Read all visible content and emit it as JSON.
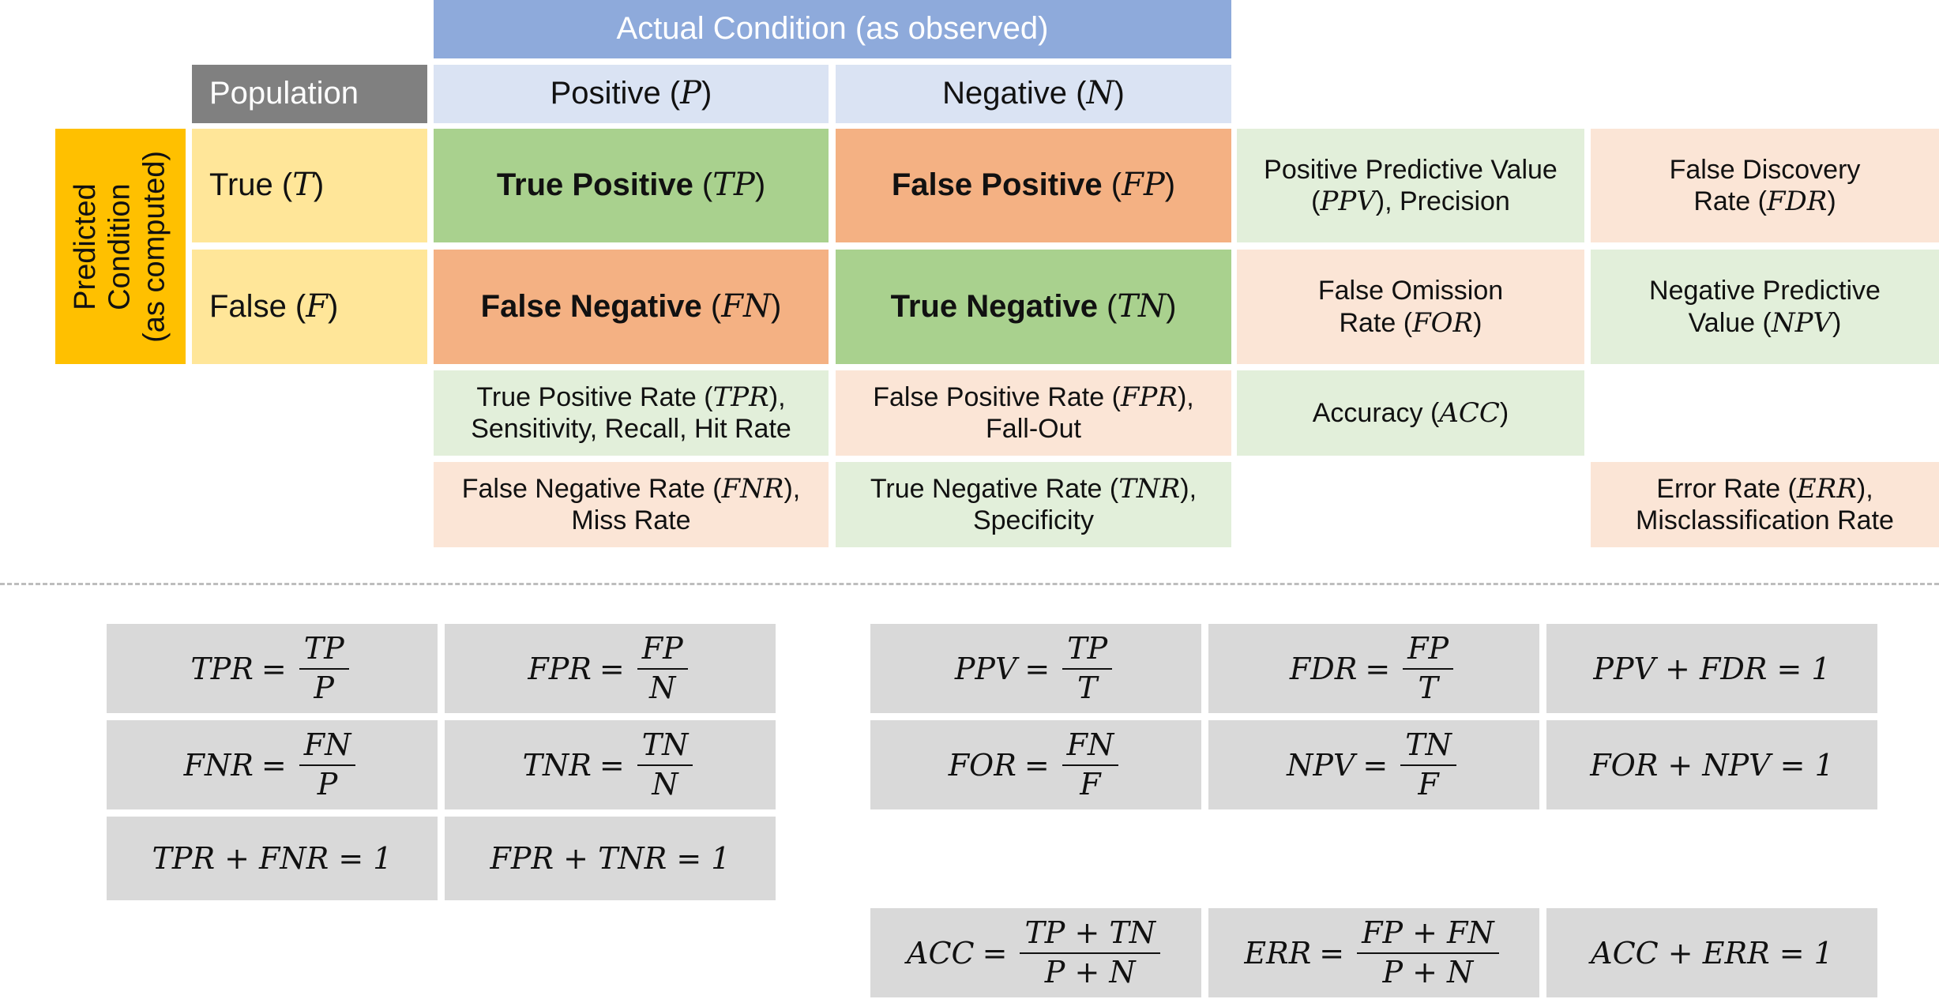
{
  "colors": {
    "header_blue": "#8eaadb",
    "header_lightblue": "#dae3f3",
    "population_gray": "#808080",
    "predicted_orange": "#ffc000",
    "predicted_yellow": "#ffe699",
    "green_strong": "#a9d18e",
    "orange_strong": "#f4b183",
    "green_light": "#e2efda",
    "peach_light": "#fbe5d6",
    "formula_gray": "#d9d9d9"
  },
  "matrix": {
    "actual_header": "Actual Condition (as observed)",
    "population": "Population",
    "actual_positive": {
      "label": "Positive (",
      "sym": "P",
      "close": ")"
    },
    "actual_negative": {
      "label": "Negative (",
      "sym": "N",
      "close": ")"
    },
    "predicted_header": "Predicted\nCondition\n(as computed)",
    "pred_true": {
      "label": "True (",
      "sym": "T",
      "close": ")"
    },
    "pred_false": {
      "label": "False (",
      "sym": "F",
      "close": ")"
    },
    "tp": {
      "label": "True Positive",
      "sym": "TP"
    },
    "fp": {
      "label": "False Positive",
      "sym": "FP"
    },
    "fn": {
      "label": "False Negative",
      "sym": "FN"
    },
    "tn": {
      "label": "True Negative",
      "sym": "TN"
    },
    "ppv": {
      "l1": "Positive Predictive Value",
      "pre": "(",
      "sym": "PPV",
      "post": "), Precision"
    },
    "fdr": {
      "l1": "False Discovery",
      "pre": "Rate (",
      "sym": "FDR",
      "post": ")"
    },
    "for": {
      "l1": "False Omission",
      "pre": "Rate (",
      "sym": "FOR",
      "post": ")"
    },
    "npv": {
      "l1": "Negative Predictive",
      "pre": "Value (",
      "sym": "NPV",
      "post": ")"
    },
    "tpr": {
      "pre": "True Positive Rate (",
      "sym": "TPR",
      "post": "),",
      "l2": "Sensitivity, Recall, Hit Rate"
    },
    "fpr": {
      "pre": "False Positive Rate (",
      "sym": "FPR",
      "post": "),",
      "l2": "Fall-Out"
    },
    "acc": {
      "pre": "Accuracy (",
      "sym": "ACC",
      "post": ")"
    },
    "fnr": {
      "pre": "False Negative Rate (",
      "sym": "FNR",
      "post": "),",
      "l2": "Miss Rate"
    },
    "tnr": {
      "pre": "True Negative Rate (",
      "sym": "TNR",
      "post": "),",
      "l2": "Specificity"
    },
    "err": {
      "pre": "Error Rate (",
      "sym": "ERR",
      "post": "),",
      "l2": "Misclassification Rate"
    }
  },
  "formulas": {
    "tpr": {
      "lhs": "TPR",
      "num": "TP",
      "den": "P"
    },
    "fpr": {
      "lhs": "FPR",
      "num": "FP",
      "den": "N"
    },
    "fnr": {
      "lhs": "FNR",
      "num": "FN",
      "den": "P"
    },
    "tnr": {
      "lhs": "TNR",
      "num": "TN",
      "den": "N"
    },
    "tpr_fnr": "TPR + FNR = 1",
    "fpr_tnr": "FPR + TNR = 1",
    "ppv": {
      "lhs": "PPV",
      "num": "TP",
      "den": "T"
    },
    "fdr": {
      "lhs": "FDR",
      "num": "FP",
      "den": "T"
    },
    "ppv_fdr": "PPV + FDR = 1",
    "for": {
      "lhs": "FOR",
      "num": "FN",
      "den": "F"
    },
    "npv": {
      "lhs": "NPV",
      "num": "TN",
      "den": "F"
    },
    "for_npv": "FOR + NPV = 1",
    "acc": {
      "lhs": "ACC",
      "num": "TP + TN",
      "den": "P + N"
    },
    "err": {
      "lhs": "ERR",
      "num": "FP + FN",
      "den": "P + N"
    },
    "acc_err": "ACC + ERR = 1",
    "equals": "="
  }
}
